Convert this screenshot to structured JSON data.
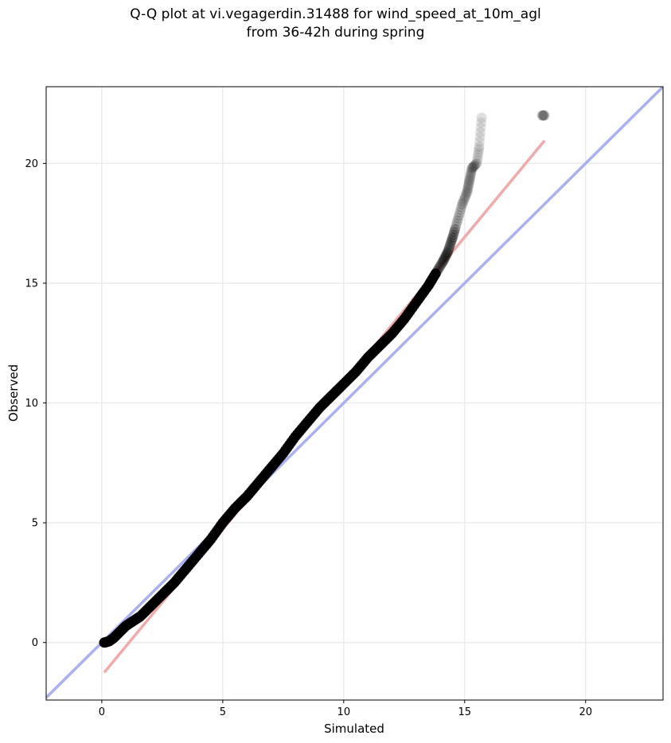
{
  "chart_data": {
    "type": "scatter",
    "title": [
      "Q-Q plot at vi.vegagerdin.31488 for wind_speed_at_10m_agl",
      "from 36-42h during spring"
    ],
    "xlabel": "Simulated",
    "ylabel": "Observed",
    "xlim": [
      -2.3,
      23.2
    ],
    "ylim": [
      -2.4,
      23.2
    ],
    "xticks": [
      0,
      5,
      10,
      15,
      20
    ],
    "yticks": [
      0,
      5,
      10,
      15,
      20
    ],
    "grid": true,
    "colors": {
      "points": "#000000",
      "identity_line": "#aab0f2",
      "fit_line": "#f2a9a9"
    },
    "identity_line": {
      "x": [
        -2.3,
        23.2
      ],
      "y": [
        -2.3,
        23.2
      ]
    },
    "fit_line": {
      "x": [
        0.1,
        18.3
      ],
      "y": [
        -1.25,
        20.95
      ]
    },
    "quantiles": {
      "x": [
        0.1,
        0.3,
        0.5,
        0.7,
        1.0,
        1.3,
        1.6,
        2.0,
        2.5,
        3.0,
        3.5,
        4.0,
        4.5,
        5.0,
        5.5,
        6.0,
        6.5,
        7.0,
        7.5,
        8.0,
        8.5,
        9.0,
        9.5,
        10.0,
        10.5,
        11.0,
        11.5,
        12.0,
        12.5,
        13.0,
        13.5,
        13.8,
        14.1,
        14.3,
        14.5,
        14.7,
        14.9,
        15.1,
        15.2,
        15.3,
        15.5,
        15.6,
        15.7,
        18.2,
        18.3
      ],
      "y": [
        0.0,
        0.05,
        0.2,
        0.4,
        0.7,
        0.9,
        1.1,
        1.5,
        2.0,
        2.5,
        3.1,
        3.7,
        4.3,
        5.0,
        5.6,
        6.1,
        6.7,
        7.3,
        7.9,
        8.6,
        9.2,
        9.8,
        10.3,
        10.8,
        11.3,
        11.9,
        12.4,
        12.9,
        13.5,
        14.2,
        14.9,
        15.4,
        15.9,
        16.3,
        16.9,
        17.6,
        18.3,
        18.8,
        19.3,
        19.8,
        20.0,
        20.7,
        21.9,
        22.0,
        22.0
      ]
    }
  }
}
